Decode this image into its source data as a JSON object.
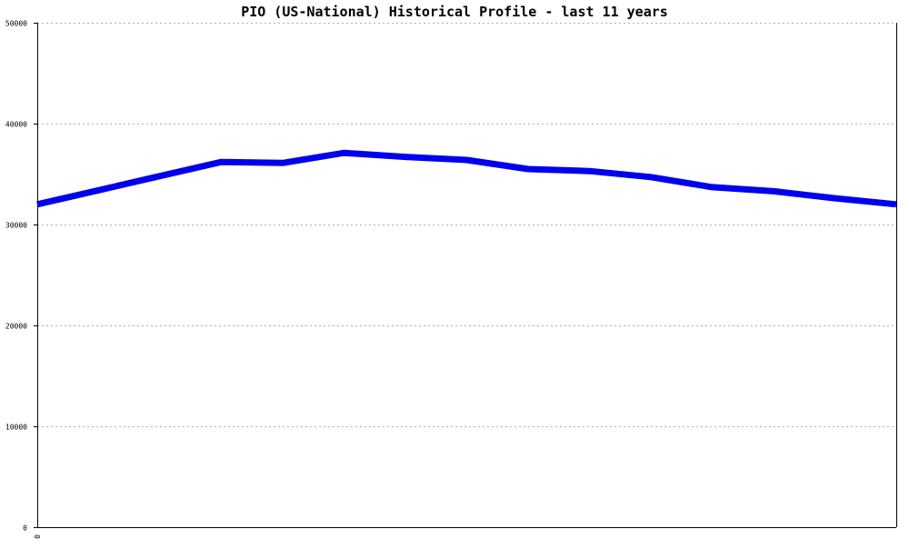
{
  "chart_data": {
    "type": "line",
    "title": "PIO (US-National) Historical Profile - last 11 years",
    "xlabel": "",
    "ylabel": "",
    "x_tick_labels": [
      "0"
    ],
    "ylim": [
      0,
      50000
    ],
    "yticks": [
      0,
      10000,
      20000,
      30000,
      40000,
      50000
    ],
    "grid": true,
    "series": [
      {
        "color": "#0000ee",
        "values": [
          32000,
          33400,
          34800,
          36200,
          36100,
          37100,
          36700,
          36400,
          35500,
          35300,
          34700,
          33700,
          33300,
          32600,
          32000
        ]
      }
    ]
  }
}
